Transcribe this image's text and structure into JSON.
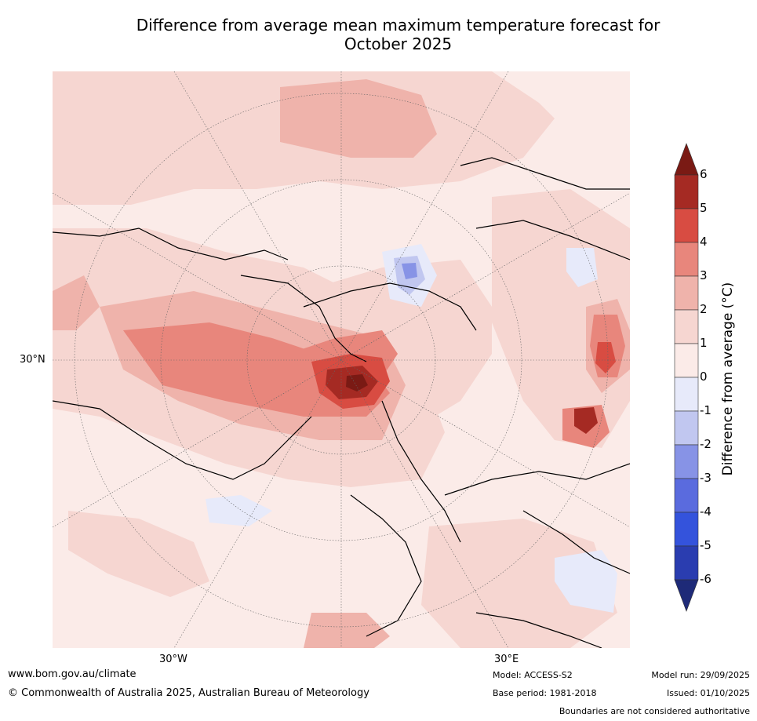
{
  "title_line1": "Difference from average mean maximum temperature forecast for",
  "title_line2": "October 2025",
  "map": {
    "lat_label": "30°N",
    "lon_label_left": "30°W",
    "lon_label_right": "30°E"
  },
  "colorbar": {
    "title": "Difference from average (°C)",
    "ticks": [
      "6",
      "5",
      "4",
      "3",
      "2",
      "1",
      "0",
      "-1",
      "-2",
      "-3",
      "-4",
      "-5",
      "-6"
    ],
    "colors": [
      "#7a1a14",
      "#a52a23",
      "#d84c42",
      "#e8867c",
      "#efb3ab",
      "#f6d6d1",
      "#fbebe8",
      "#e7eafa",
      "#c1c7f0",
      "#8793e6",
      "#5a6bde",
      "#3453dc",
      "#2a3db0",
      "#1e2a78"
    ]
  },
  "footer": {
    "website": "www.bom.gov.au/climate",
    "copyright": "© Commonwealth of Australia 2025, Australian Bureau of Meteorology",
    "model": "Model: ACCESS-S2",
    "base_period": "Base period: 1981-2018",
    "model_run": "Model run: 29/09/2025",
    "issued": "Issued: 01/10/2025",
    "disclaimer": "Boundaries are not considered authoritative"
  }
}
